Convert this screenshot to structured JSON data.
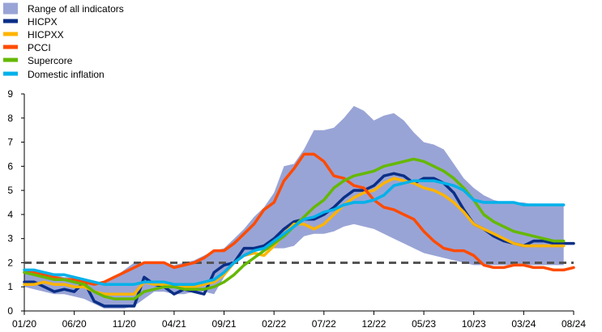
{
  "chart_data": {
    "type": "line",
    "title": "",
    "xlabel": "",
    "ylabel": "",
    "ylim": [
      0,
      9
    ],
    "yticks": [
      0,
      1,
      2,
      3,
      4,
      5,
      6,
      7,
      8,
      9
    ],
    "xlim": [
      0,
      55
    ],
    "xticks": [
      {
        "label": "01/20",
        "index": 0
      },
      {
        "label": "06/20",
        "index": 5
      },
      {
        "label": "11/20",
        "index": 10
      },
      {
        "label": "04/21",
        "index": 15
      },
      {
        "label": "09/21",
        "index": 20
      },
      {
        "label": "02/22",
        "index": 25
      },
      {
        "label": "07/22",
        "index": 30
      },
      {
        "label": "12/22",
        "index": 35
      },
      {
        "label": "05/23",
        "index": 40
      },
      {
        "label": "10/23",
        "index": 45
      },
      {
        "label": "03/24",
        "index": 50
      },
      {
        "label": "08/24",
        "index": 55
      }
    ],
    "reference_line": {
      "value": 2,
      "style": "dashed",
      "color": "#555555"
    },
    "grid": false,
    "legend_position": "top-left",
    "range": {
      "name": "Range of all indicators",
      "color": "#99a4d6",
      "upper": [
        1.7,
        1.6,
        1.5,
        1.5,
        1.4,
        1.4,
        1.3,
        1.2,
        1.2,
        1.4,
        1.7,
        2.0,
        2.0,
        2.0,
        2.0,
        1.9,
        2.0,
        2.1,
        2.3,
        2.5,
        2.6,
        3.0,
        3.4,
        3.9,
        4.3,
        4.9,
        6.0,
        6.1,
        6.7,
        7.5,
        7.5,
        7.6,
        8.0,
        8.5,
        8.3,
        7.9,
        8.1,
        8.2,
        7.9,
        7.4,
        7.0,
        6.9,
        6.7,
        6.1,
        5.5,
        5.1,
        4.8,
        4.6,
        4.5,
        4.5,
        4.5,
        4.4,
        4.4,
        4.4,
        4.4
      ],
      "lower": [
        1.0,
        0.9,
        0.8,
        0.7,
        0.7,
        0.6,
        0.5,
        0.3,
        0.1,
        0.1,
        0.1,
        0.2,
        0.5,
        0.8,
        0.8,
        0.7,
        0.7,
        0.8,
        0.8,
        0.7,
        1.4,
        2.0,
        2.3,
        2.5,
        2.5,
        2.6,
        2.6,
        2.7,
        3.1,
        3.2,
        3.2,
        3.3,
        3.5,
        3.6,
        3.5,
        3.4,
        3.2,
        3.0,
        2.8,
        2.6,
        2.4,
        2.3,
        2.2,
        2.1,
        2.0,
        1.9,
        1.9,
        1.9,
        1.9,
        1.9,
        1.9,
        1.9,
        1.9,
        1.9,
        1.9
      ]
    },
    "series": [
      {
        "name": "HICPX",
        "color": "#0a2f87",
        "values": [
          1.2,
          1.2,
          1.0,
          0.8,
          0.9,
          0.8,
          1.2,
          0.4,
          0.2,
          0.2,
          0.2,
          0.2,
          1.4,
          1.1,
          1.0,
          0.7,
          0.9,
          0.8,
          0.7,
          1.6,
          1.9,
          2.0,
          2.6,
          2.6,
          2.7,
          3.0,
          3.4,
          3.7,
          3.8,
          3.8,
          4.0,
          4.3,
          4.7,
          5.0,
          5.0,
          5.2,
          5.6,
          5.7,
          5.6,
          5.3,
          5.5,
          5.5,
          5.3,
          4.9,
          4.2,
          3.6,
          3.4,
          3.1,
          2.9,
          2.8,
          2.7,
          2.9,
          2.9,
          2.8,
          2.8,
          2.8
        ]
      },
      {
        "name": "HICPXX",
        "color": "#ffb400",
        "values": [
          1.1,
          1.1,
          1.2,
          1.1,
          1.1,
          1.0,
          1.0,
          0.8,
          0.7,
          0.7,
          0.7,
          0.7,
          1.2,
          1.1,
          1.1,
          1.0,
          1.0,
          1.0,
          1.1,
          1.2,
          1.5,
          2.0,
          2.3,
          2.4,
          2.3,
          2.7,
          3.2,
          3.6,
          3.6,
          3.4,
          3.6,
          4.0,
          4.4,
          4.7,
          4.9,
          5.0,
          5.3,
          5.5,
          5.4,
          5.3,
          5.1,
          5.0,
          4.8,
          4.5,
          4.1,
          3.6,
          3.4,
          3.2,
          3.0,
          2.8,
          2.7,
          2.7,
          2.7,
          2.7,
          2.7
        ]
      },
      {
        "name": "PCCI",
        "color": "#ff4b00",
        "values": [
          1.6,
          1.6,
          1.5,
          1.4,
          1.3,
          1.3,
          1.2,
          1.1,
          1.2,
          1.4,
          1.6,
          1.8,
          2.0,
          2.0,
          2.0,
          1.8,
          1.9,
          2.0,
          2.2,
          2.5,
          2.5,
          2.8,
          3.2,
          3.6,
          4.2,
          4.5,
          5.4,
          5.9,
          6.5,
          6.5,
          6.2,
          5.6,
          5.5,
          5.2,
          5.1,
          4.6,
          4.3,
          4.2,
          4.0,
          3.8,
          3.3,
          2.9,
          2.6,
          2.5,
          2.5,
          2.3,
          1.9,
          1.8,
          1.8,
          1.9,
          1.9,
          1.8,
          1.8,
          1.7,
          1.7,
          1.8
        ]
      },
      {
        "name": "Supercore",
        "color": "#65b800",
        "values": [
          1.6,
          1.5,
          1.4,
          1.3,
          1.3,
          1.2,
          1.1,
          0.8,
          0.6,
          0.5,
          0.5,
          0.5,
          0.8,
          0.9,
          1.0,
          1.0,
          0.9,
          0.9,
          0.9,
          1.0,
          1.2,
          1.5,
          1.9,
          2.2,
          2.5,
          2.8,
          3.1,
          3.5,
          3.9,
          4.3,
          4.6,
          5.1,
          5.4,
          5.6,
          5.7,
          5.8,
          6.0,
          6.1,
          6.2,
          6.3,
          6.2,
          6.0,
          5.8,
          5.5,
          5.1,
          4.6,
          4.0,
          3.7,
          3.5,
          3.3,
          3.2,
          3.1,
          3.0,
          2.9,
          2.9
        ]
      },
      {
        "name": "Domestic inflation",
        "color": "#00b1ea",
        "values": [
          1.7,
          1.7,
          1.6,
          1.5,
          1.5,
          1.4,
          1.3,
          1.2,
          1.1,
          1.1,
          1.1,
          1.1,
          1.2,
          1.2,
          1.2,
          1.1,
          1.1,
          1.1,
          1.2,
          1.3,
          1.6,
          2.0,
          2.3,
          2.5,
          2.6,
          2.9,
          3.2,
          3.5,
          3.8,
          3.9,
          4.1,
          4.2,
          4.4,
          4.5,
          4.5,
          4.6,
          4.8,
          5.2,
          5.3,
          5.4,
          5.4,
          5.4,
          5.3,
          5.2,
          5.0,
          4.6,
          4.5,
          4.5,
          4.5,
          4.5,
          4.4,
          4.4,
          4.4,
          4.4,
          4.4
        ]
      }
    ]
  }
}
